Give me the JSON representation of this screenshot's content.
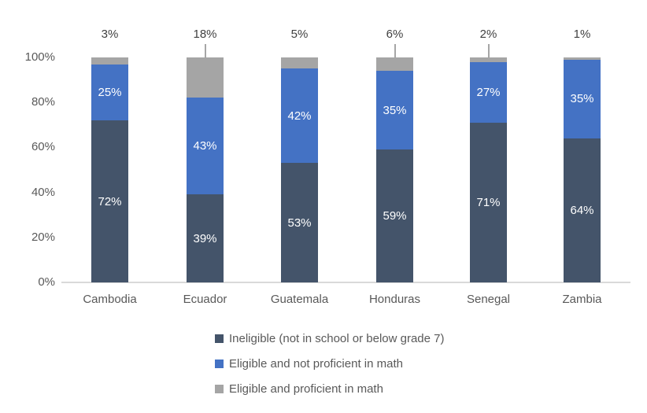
{
  "chart_data": {
    "type": "bar",
    "stacked": true,
    "title": "",
    "xlabel": "",
    "ylabel": "",
    "ylim": [
      0,
      100
    ],
    "gridlines": false,
    "legend_position": "bottom",
    "categories": [
      "Cambodia",
      "Ecuador",
      "Guatemala",
      "Honduras",
      "Senegal",
      "Zambia"
    ],
    "series": [
      {
        "name": "Ineligible (not in school or below grade 7)",
        "color": "#44546A",
        "values": [
          72,
          39,
          53,
          59,
          71,
          64
        ],
        "inside_labels": true
      },
      {
        "name": "Eligible and not proficient in math",
        "color": "#4472C4",
        "values": [
          25,
          43,
          42,
          35,
          27,
          35
        ],
        "inside_labels": true
      },
      {
        "name": "Eligible and proficient in math",
        "color": "#A5A5A5",
        "values": [
          3,
          18,
          5,
          6,
          2,
          1
        ],
        "inside_labels": false
      }
    ],
    "top_labels": {
      "series": "Eligible and proficient in math",
      "values": [
        "3%",
        "18%",
        "5%",
        "6%",
        "2%",
        "1%"
      ],
      "leader_lines": [
        false,
        true,
        false,
        true,
        true,
        false
      ]
    },
    "y_ticks": [
      "0%",
      "20%",
      "40%",
      "60%",
      "80%",
      "100%"
    ],
    "y_tick_values": [
      0,
      20,
      40,
      60,
      80,
      100
    ],
    "colors": {
      "axis_line": "#d9d9d9",
      "axis_text": "#595959",
      "top_label_text": "#404040",
      "inside_label_text": "#ffffff",
      "leader_line": "#a6a6a6"
    }
  }
}
